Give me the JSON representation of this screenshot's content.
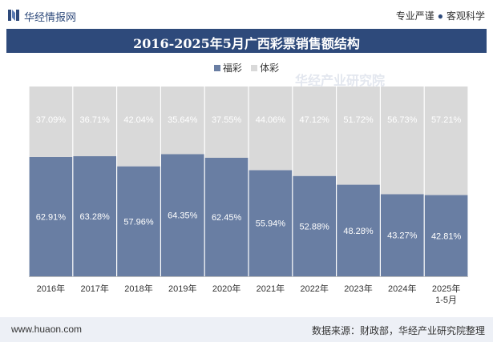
{
  "header": {
    "brand": "华经情报网",
    "tag_left": "专业严谨",
    "tag_sep": "●",
    "tag_right": "客观科学"
  },
  "chart_data": {
    "type": "bar",
    "stacked": true,
    "title": "2016-2025年5月广西彩票销售额结构",
    "categories": [
      "2016年",
      "2017年",
      "2018年",
      "2019年",
      "2020年",
      "2021年",
      "2022年",
      "2023年",
      "2024年",
      "2025年\n1-5月"
    ],
    "series": [
      {
        "name": "福彩",
        "color": "#697ea3",
        "values": [
          62.91,
          63.28,
          57.96,
          64.35,
          62.45,
          55.94,
          52.88,
          48.28,
          43.27,
          42.81
        ],
        "labels": [
          "62.91%",
          "63.28%",
          "57.96%",
          "64.35%",
          "62.45%",
          "55.94%",
          "52.88%",
          "48.28%",
          "43.27%",
          "42.81%"
        ]
      },
      {
        "name": "体彩",
        "color": "#d9d9d9",
        "values": [
          37.09,
          36.71,
          42.04,
          35.64,
          37.55,
          44.06,
          47.12,
          51.72,
          56.73,
          57.21
        ],
        "labels": [
          "37.09%",
          "36.71%",
          "42.04%",
          "35.64%",
          "37.55%",
          "44.06%",
          "47.12%",
          "51.72%",
          "56.73%",
          "57.21%"
        ]
      }
    ],
    "ylim": [
      0,
      100
    ],
    "legend_position": "top-center",
    "watermark": "华经产业研究院"
  },
  "footer": {
    "url": "www.huaon.com",
    "source": "数据来源：财政部，华经产业研究院整理"
  }
}
